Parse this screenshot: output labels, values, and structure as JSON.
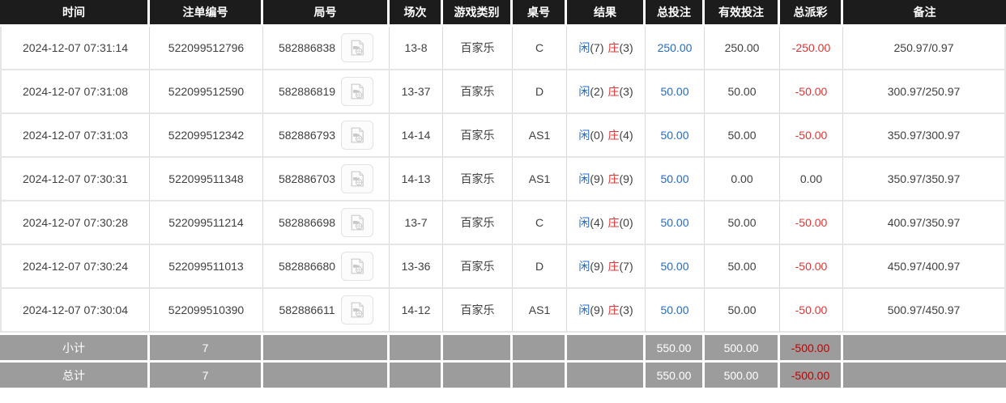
{
  "colors": {
    "header-bg": "#1c1c1c",
    "footer-bg": "#9c9c9c",
    "accent-blue": "#2569c8",
    "accent-red": "#e23434",
    "footer-red": "#c00000",
    "text": "#404040"
  },
  "icons": {
    "video_replay": "video-replay-icon"
  },
  "table": {
    "columns": [
      {
        "key": "time",
        "label": "时间"
      },
      {
        "key": "bet_id",
        "label": "注单编号"
      },
      {
        "key": "round_id",
        "label": "局号"
      },
      {
        "key": "session",
        "label": "场次"
      },
      {
        "key": "game_type",
        "label": "游戏类别"
      },
      {
        "key": "table_no",
        "label": "桌号"
      },
      {
        "key": "result",
        "label": "结果"
      },
      {
        "key": "total_bet",
        "label": "总投注"
      },
      {
        "key": "valid_bet",
        "label": "有效投注"
      },
      {
        "key": "total_payout",
        "label": "总派彩"
      },
      {
        "key": "remark",
        "label": "备注"
      }
    ],
    "rows": [
      {
        "time": "2024-12-07 07:31:14",
        "bet_id": "522099512796",
        "round_id": "582886838",
        "session": "13-8",
        "game_type": "百家乐",
        "table_no": "C",
        "result": {
          "player_label": "闲",
          "player_score": "(7)",
          "banker_label": "庄",
          "banker_score": "(3)"
        },
        "total_bet": "250.00",
        "valid_bet": "250.00",
        "total_payout": "-250.00",
        "remark": "250.97/0.97"
      },
      {
        "time": "2024-12-07 07:31:08",
        "bet_id": "522099512590",
        "round_id": "582886819",
        "session": "13-37",
        "game_type": "百家乐",
        "table_no": "D",
        "result": {
          "player_label": "闲",
          "player_score": "(2)",
          "banker_label": "庄",
          "banker_score": "(3)"
        },
        "total_bet": "50.00",
        "valid_bet": "50.00",
        "total_payout": "-50.00",
        "remark": "300.97/250.97"
      },
      {
        "time": "2024-12-07 07:31:03",
        "bet_id": "522099512342",
        "round_id": "582886793",
        "session": "14-14",
        "game_type": "百家乐",
        "table_no": "AS1",
        "result": {
          "player_label": "闲",
          "player_score": "(0)",
          "banker_label": "庄",
          "banker_score": "(4)"
        },
        "total_bet": "50.00",
        "valid_bet": "50.00",
        "total_payout": "-50.00",
        "remark": "350.97/300.97"
      },
      {
        "time": "2024-12-07 07:30:31",
        "bet_id": "522099511348",
        "round_id": "582886703",
        "session": "14-13",
        "game_type": "百家乐",
        "table_no": "AS1",
        "result": {
          "player_label": "闲",
          "player_score": "(9)",
          "banker_label": "庄",
          "banker_score": "(9)"
        },
        "total_bet": "50.00",
        "valid_bet": "0.00",
        "total_payout": "0.00",
        "remark": "350.97/350.97"
      },
      {
        "time": "2024-12-07 07:30:28",
        "bet_id": "522099511214",
        "round_id": "582886698",
        "session": "13-7",
        "game_type": "百家乐",
        "table_no": "C",
        "result": {
          "player_label": "闲",
          "player_score": "(4)",
          "banker_label": "庄",
          "banker_score": "(0)"
        },
        "total_bet": "50.00",
        "valid_bet": "50.00",
        "total_payout": "-50.00",
        "remark": "400.97/350.97"
      },
      {
        "time": "2024-12-07 07:30:24",
        "bet_id": "522099511013",
        "round_id": "582886680",
        "session": "13-36",
        "game_type": "百家乐",
        "table_no": "D",
        "result": {
          "player_label": "闲",
          "player_score": "(9)",
          "banker_label": "庄",
          "banker_score": "(7)"
        },
        "total_bet": "50.00",
        "valid_bet": "50.00",
        "total_payout": "-50.00",
        "remark": "450.97/400.97"
      },
      {
        "time": "2024-12-07 07:30:04",
        "bet_id": "522099510390",
        "round_id": "582886611",
        "session": "14-12",
        "game_type": "百家乐",
        "table_no": "AS1",
        "result": {
          "player_label": "闲",
          "player_score": "(9)",
          "banker_label": "庄",
          "banker_score": "(3)"
        },
        "total_bet": "50.00",
        "valid_bet": "50.00",
        "total_payout": "-50.00",
        "remark": "500.97/450.97"
      }
    ],
    "summary_rows": [
      {
        "label": "小计",
        "count": "7",
        "total_bet": "550.00",
        "valid_bet": "500.00",
        "total_payout": "-500.00"
      },
      {
        "label": "总计",
        "count": "7",
        "total_bet": "550.00",
        "valid_bet": "500.00",
        "total_payout": "-500.00"
      }
    ]
  }
}
